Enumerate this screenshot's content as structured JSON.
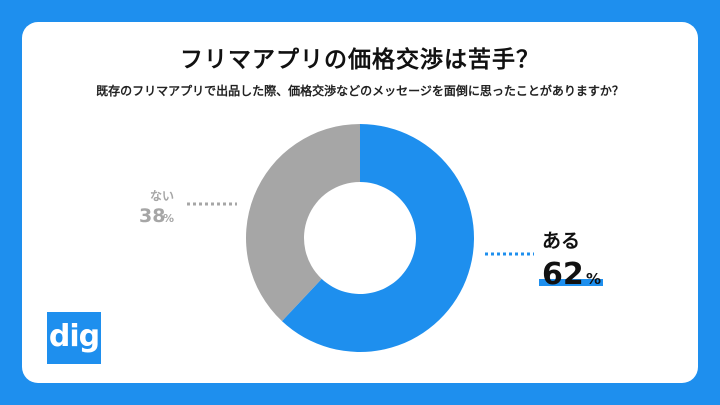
{
  "header": {
    "title": "フリマアプリの価格交渉は苦手？",
    "subtitle": "既存のフリマアプリで出品した際、価格交渉などのメッセージを面倒に思ったことがありますか？"
  },
  "brand": {
    "logo_text": "dig",
    "color": "#1e8fee"
  },
  "chart_data": {
    "type": "pie",
    "donut": true,
    "title": "フリマアプリの価格交渉は苦手？",
    "subtitle": "既存のフリマアプリで出品した際、価格交渉などのメッセージを面倒に思ったことがありますか？",
    "slices": [
      {
        "label": "ある",
        "value": 62,
        "display": "62",
        "unit": "%",
        "color": "#1e8fee"
      },
      {
        "label": "ない",
        "value": 38,
        "display": "38",
        "unit": "%",
        "color": "#a6a6a6"
      }
    ],
    "start": "top",
    "direction": "clockwise"
  }
}
